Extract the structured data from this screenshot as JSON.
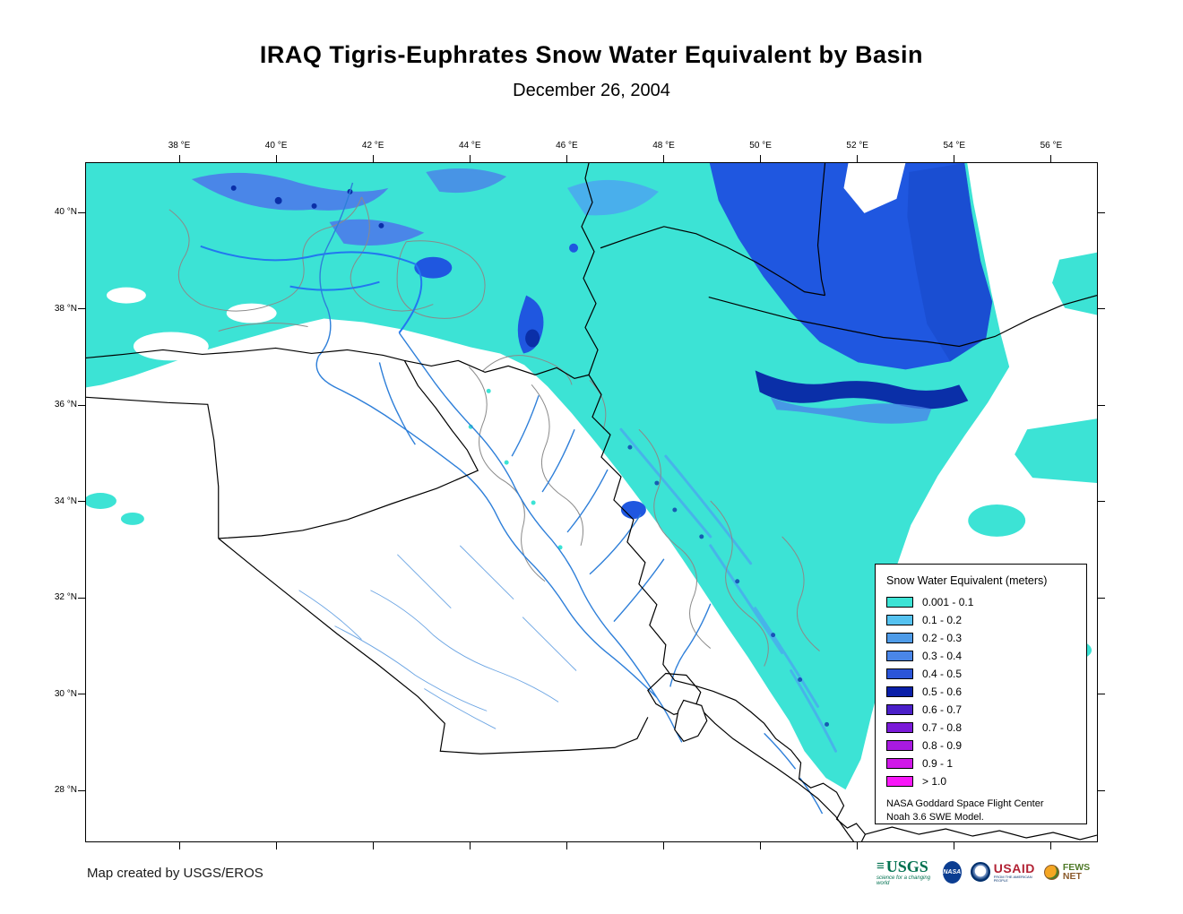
{
  "title": "IRAQ Tigris-Euphrates Snow Water Equivalent by Basin",
  "subtitle": "December 26, 2004",
  "map": {
    "lon_labels": [
      "38 °E",
      "40 °E",
      "42 °E",
      "44 °E",
      "46 °E",
      "48 °E",
      "50 °E",
      "52 °E",
      "54 °E",
      "56 °E"
    ],
    "lat_labels": [
      "40 °N",
      "38 °N",
      "36 °N",
      "34 °N",
      "32 °N",
      "30 °N",
      "28 °N"
    ],
    "colors": {
      "snow_light": "#3CE3D5",
      "water_blue": "#1F57E0",
      "mountain_blue": "#4A86E8",
      "deep_navy": "#0A2FA8",
      "river_blue": "#2E7FD9",
      "border_black": "#000000",
      "basin_gray": "#8a8a8a"
    }
  },
  "legend": {
    "title": "Snow Water Equivalent (meters)",
    "items": [
      {
        "label": "0.001 - 0.1",
        "color": "#3CE3D5"
      },
      {
        "label": "0.1 - 0.2",
        "color": "#55C2F0"
      },
      {
        "label": "0.2 - 0.3",
        "color": "#4E9BE8"
      },
      {
        "label": "0.3 - 0.4",
        "color": "#4A86E8"
      },
      {
        "label": "0.4 - 0.5",
        "color": "#2B55D8"
      },
      {
        "label": "0.5 - 0.6",
        "color": "#0A1FA8"
      },
      {
        "label": "0.6 - 0.7",
        "color": "#4A1FC8"
      },
      {
        "label": "0.7 - 0.8",
        "color": "#7A1AD8"
      },
      {
        "label": "0.8 - 0.9",
        "color": "#A81AE0"
      },
      {
        "label": "0.9 - 1",
        "color": "#D018E8"
      },
      {
        "label": "> 1.0",
        "color": "#F818F8"
      }
    ],
    "note_line1": "NASA Goddard Space Flight Center",
    "note_line2": "Noah 3.6 SWE Model."
  },
  "footer": {
    "credit": "Map created by USGS/EROS"
  },
  "logos": {
    "usgs": {
      "name": "USGS",
      "tagline": "science for a changing world"
    },
    "nasa": {
      "name": "NASA"
    },
    "usaid": {
      "name": "USAID",
      "tagline": "FROM THE AMERICAN PEOPLE"
    },
    "fewsnet": {
      "name_1": "FEWS",
      "name_2": "NET"
    }
  }
}
